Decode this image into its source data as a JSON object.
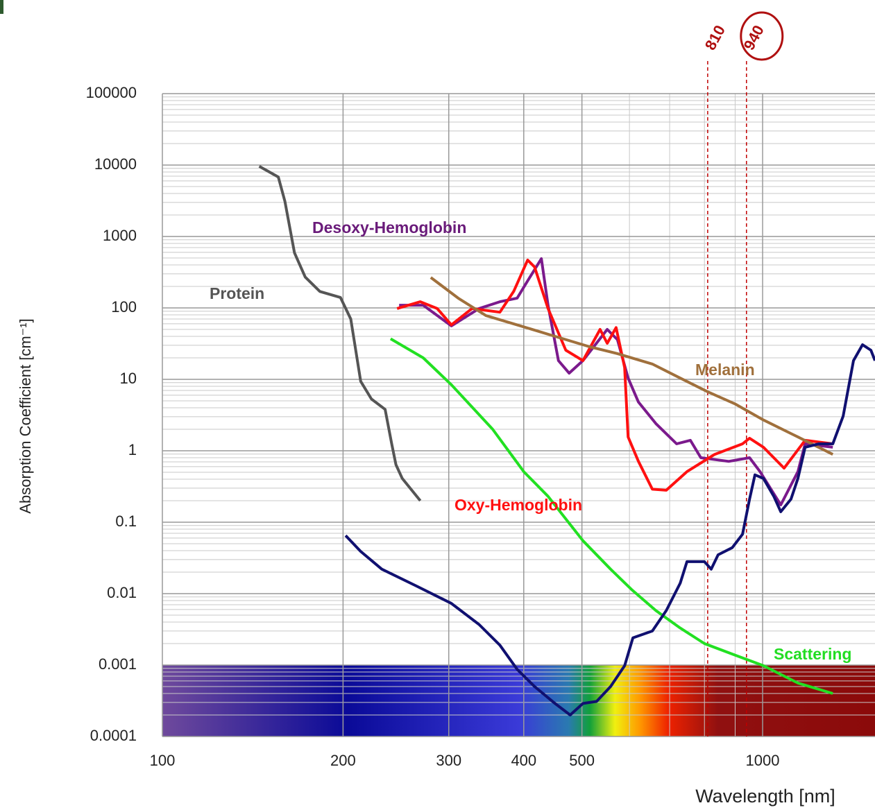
{
  "chart_data": {
    "type": "line",
    "x_label": "Wavelength [nm]",
    "y_label": "Absorption Coefficient [cm⁻¹]",
    "xscale": "log",
    "yscale": "log",
    "grid": true,
    "minor_grid": true,
    "xlim": [
      100,
      1539
    ],
    "ylim": [
      0.0001,
      100000
    ],
    "xticks": [
      100,
      200,
      300,
      400,
      500,
      1000
    ],
    "yticks": [
      0.0001,
      0.001,
      0.01,
      0.1,
      1,
      10,
      100,
      1000,
      10000,
      100000
    ],
    "series": [
      {
        "name": "Protein",
        "color": "#555555",
        "x": [
          145,
          156,
          160,
          166,
          173,
          183,
          198,
          206,
          214,
          223,
          235,
          241,
          245,
          251,
          269
        ],
        "values": [
          9600,
          6800,
          3100,
          590,
          270,
          170,
          140,
          70,
          9.4,
          5.3,
          3.8,
          1.25,
          0.64,
          0.41,
          0.2
        ]
      },
      {
        "name": "Desoxy-Hemoglobin",
        "color": "#7b1a8c",
        "x": [
          248,
          272,
          303,
          337,
          365,
          390,
          406,
          428,
          439,
          457,
          476,
          502,
          551,
          573,
          597,
          621,
          664,
          719,
          758,
          789,
          878,
          951,
          990,
          1072,
          1145,
          1177,
          1309
        ],
        "values": [
          109,
          109,
          56,
          98,
          122,
          137,
          239,
          489,
          109,
          18.3,
          12.2,
          18.3,
          50,
          36,
          10.4,
          4.8,
          2.4,
          1.25,
          1.4,
          0.8,
          0.71,
          0.8,
          0.51,
          0.175,
          0.51,
          1.25,
          1.12
        ]
      },
      {
        "name": "Oxy-Hemoglobin",
        "color": "#ff1010",
        "x": [
          246,
          269,
          287,
          303,
          328,
          365,
          385,
          406,
          417,
          439,
          470,
          502,
          536,
          551,
          570,
          589,
          597,
          621,
          655,
          691,
          748,
          832,
          926,
          951,
          1003,
          1086,
          1177,
          1309
        ],
        "values": [
          98,
          122,
          98,
          58,
          98,
          87,
          171,
          468,
          374,
          98,
          25.6,
          18.3,
          50,
          32,
          53,
          14.6,
          1.56,
          0.71,
          0.29,
          0.28,
          0.51,
          0.89,
          1.25,
          1.5,
          1.12,
          0.57,
          1.4,
          1.25
        ]
      },
      {
        "name": "Melanin",
        "color": "#a0703c",
        "x": [
          280,
          311,
          346,
          395,
          451,
          515,
          573,
          655,
          729,
          810,
          901,
          1003,
          1145,
          1309
        ],
        "values": [
          267,
          137,
          78,
          56,
          40,
          28.6,
          22.9,
          16.4,
          10.4,
          6.7,
          4.5,
          2.7,
          1.56,
          0.89
        ]
      },
      {
        "name": "Scattering",
        "color": "#22e022",
        "x": [
          240,
          272,
          303,
          355,
          400,
          439,
          502,
          558,
          605,
          664,
          729,
          800,
          901,
          1003,
          1145,
          1309
        ],
        "values": [
          37,
          20,
          8.4,
          2.0,
          0.51,
          0.23,
          0.055,
          0.022,
          0.0114,
          0.0058,
          0.0033,
          0.002,
          0.00137,
          0.00098,
          0.00056,
          0.0004
        ]
      },
      {
        "color": "#101070",
        "x": [
          202,
          214,
          232,
          265,
          303,
          337,
          365,
          390,
          417,
          451,
          478,
          502,
          529,
          558,
          589,
          608,
          655,
          691,
          729,
          748,
          800,
          821,
          843,
          890,
          926,
          951,
          971,
          1003,
          1044,
          1072,
          1115,
          1145,
          1177,
          1241,
          1309,
          1362,
          1417,
          1467,
          1515,
          1539
        ],
        "values": [
          0.065,
          0.039,
          0.022,
          0.0128,
          0.0073,
          0.0037,
          0.0019,
          0.00087,
          0.0005,
          0.00029,
          0.0002,
          0.00029,
          0.00031,
          0.0005,
          0.00098,
          0.0024,
          0.003,
          0.0058,
          0.014,
          0.028,
          0.028,
          0.022,
          0.035,
          0.044,
          0.068,
          0.21,
          0.46,
          0.41,
          0.23,
          0.14,
          0.21,
          0.41,
          1.12,
          1.25,
          1.25,
          3.05,
          18.3,
          30.5,
          25.6,
          18.3
        ]
      }
    ],
    "annotations": [
      {
        "label": "810",
        "x": 810
      },
      {
        "label": "940",
        "x": 940
      }
    ]
  }
}
